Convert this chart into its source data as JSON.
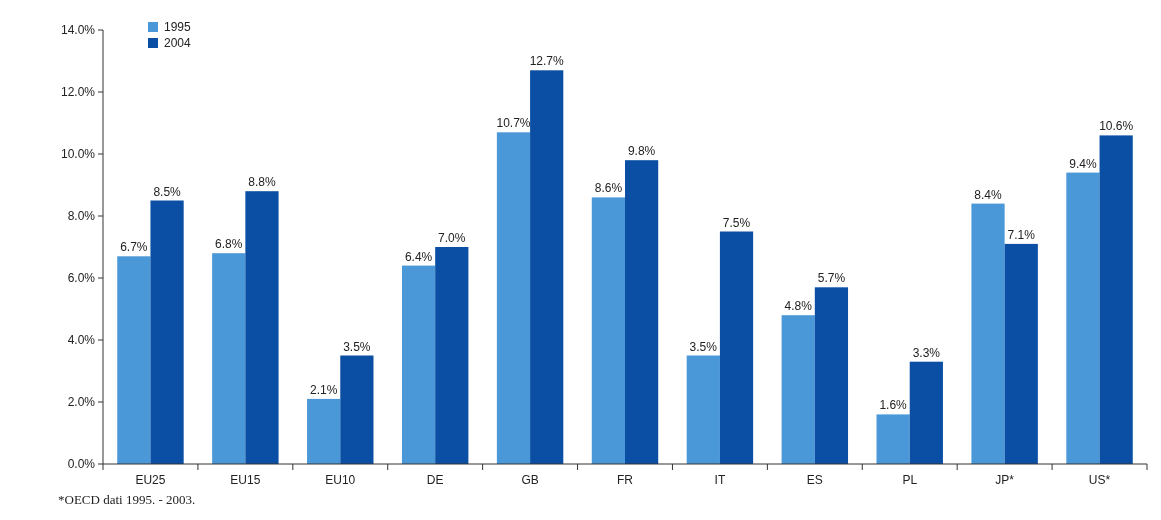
{
  "chart_data": {
    "type": "bar",
    "categories": [
      "EU25",
      "EU15",
      "EU10",
      "DE",
      "GB",
      "FR",
      "IT",
      "ES",
      "PL",
      "JP*",
      "US*"
    ],
    "series": [
      {
        "name": "1995",
        "color": "#4a98d8",
        "values": [
          6.7,
          6.8,
          2.1,
          6.4,
          10.7,
          8.6,
          3.5,
          4.8,
          1.6,
          8.4,
          9.4
        ],
        "value_labels": [
          "6.7%",
          "6.8%",
          "2.1%",
          "6.4%",
          "10.7%",
          "8.6%",
          "3.5%",
          "4.8%",
          "1.6%",
          "8.4%",
          "9.4%"
        ]
      },
      {
        "name": "2004",
        "color": "#0a4fa3",
        "values": [
          8.5,
          8.8,
          3.5,
          7.0,
          12.7,
          9.8,
          7.5,
          5.7,
          3.3,
          7.1,
          10.6
        ],
        "value_labels": [
          "8.5%",
          "8.8%",
          "3.5%",
          "7.0%",
          "12.7%",
          "9.8%",
          "7.5%",
          "5.7%",
          "3.3%",
          "7.1%",
          "10.6%"
        ]
      }
    ],
    "ylim": [
      0,
      14
    ],
    "yticks": [
      {
        "value": 0,
        "label": "0.0%"
      },
      {
        "value": 2,
        "label": "2.0%"
      },
      {
        "value": 4,
        "label": "4.0%"
      },
      {
        "value": 6,
        "label": "6.0%"
      },
      {
        "value": 8,
        "label": "8.0%"
      },
      {
        "value": 10,
        "label": "10.0%"
      },
      {
        "value": 12,
        "label": "12.0%"
      },
      {
        "value": 14,
        "label": "14.0%"
      }
    ],
    "legend": "top left",
    "annotations": [
      "*OECD dati 1995. - 2003."
    ]
  }
}
